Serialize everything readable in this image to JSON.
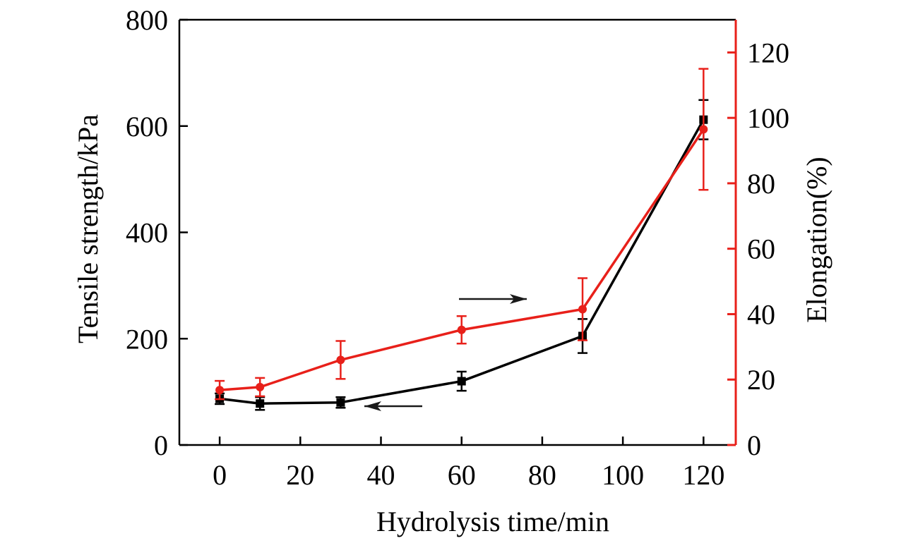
{
  "chart_data": {
    "type": "line",
    "title": "",
    "xlabel": "Hydrolysis time/min",
    "ylabel": "Tensile strength/kPa",
    "y2label": "Elongation(%)",
    "xlim": [
      -10,
      128
    ],
    "ylim": [
      0,
      800
    ],
    "y2lim": [
      0,
      130
    ],
    "x_ticks": [
      0,
      20,
      40,
      60,
      80,
      100,
      120
    ],
    "y_ticks": [
      0,
      200,
      400,
      600,
      800
    ],
    "y2_ticks": [
      0,
      20,
      40,
      60,
      80,
      100,
      120
    ],
    "series": [
      {
        "name": "Tensile strength",
        "axis": "left",
        "color": "#000000",
        "marker": "square",
        "x": [
          0,
          10,
          30,
          60,
          90,
          120
        ],
        "values": [
          87,
          78,
          80,
          120,
          205,
          612
        ],
        "errors": [
          10,
          12,
          10,
          18,
          32,
          37
        ]
      },
      {
        "name": "Elongation",
        "axis": "right",
        "color": "#e8201a",
        "marker": "circle",
        "x": [
          0,
          10,
          30,
          60,
          90,
          120
        ],
        "values": [
          16.8,
          17.7,
          26,
          35.2,
          41.5,
          96.5
        ],
        "errors": [
          2.8,
          2.8,
          5.8,
          4.2,
          9.5,
          18.5
        ]
      }
    ],
    "annotations": [
      {
        "type": "arrow",
        "direction": "right",
        "meaning": "red series uses right axis"
      },
      {
        "type": "arrow",
        "direction": "left",
        "meaning": "black series uses left axis"
      }
    ]
  }
}
